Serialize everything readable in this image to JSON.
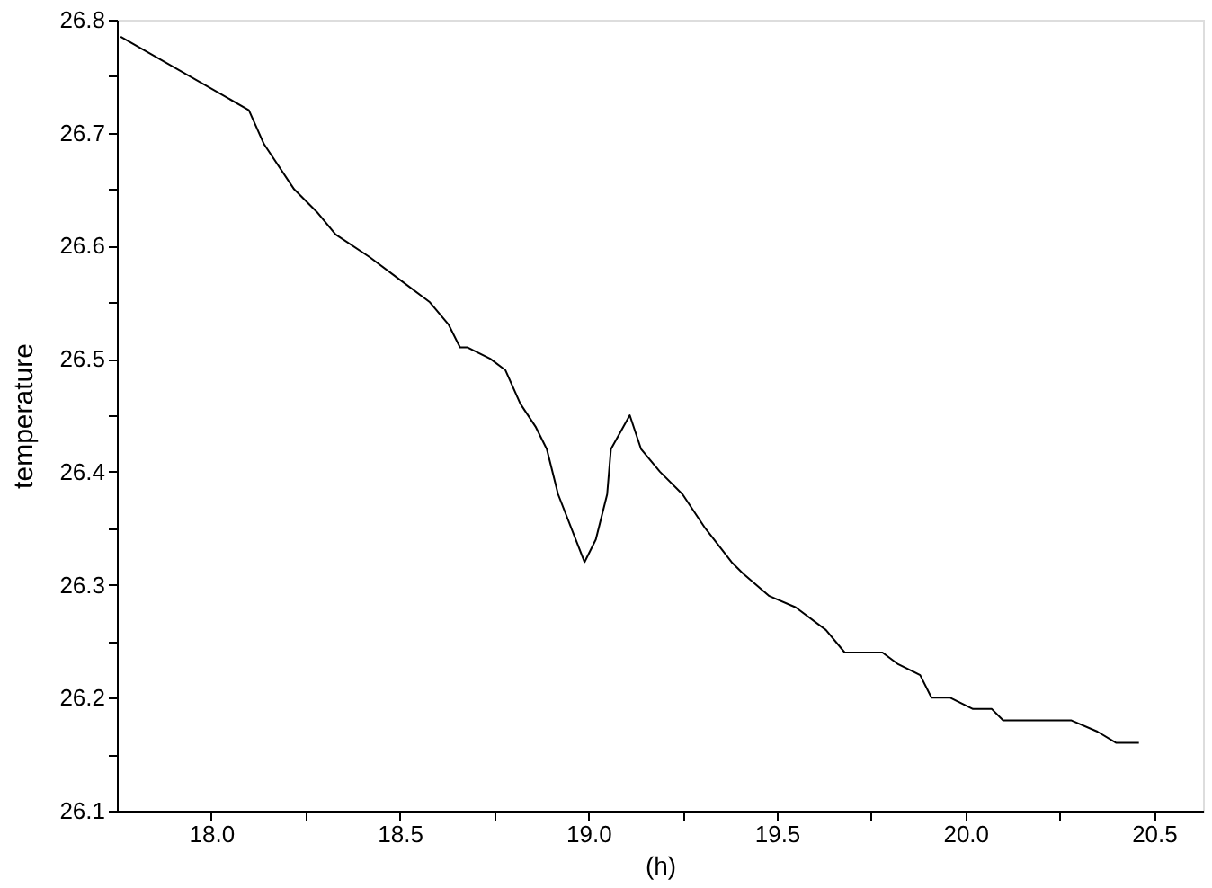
{
  "chart_data": {
    "type": "line",
    "xlabel": "(h)",
    "ylabel": "temperature",
    "x": [
      17.76,
      18.1,
      18.14,
      18.22,
      18.28,
      18.33,
      18.42,
      18.5,
      18.58,
      18.63,
      18.66,
      18.68,
      18.74,
      18.78,
      18.82,
      18.86,
      18.89,
      18.92,
      18.99,
      19.02,
      19.05,
      19.06,
      19.11,
      19.14,
      19.19,
      19.25,
      19.31,
      19.38,
      19.41,
      19.48,
      19.55,
      19.63,
      19.68,
      19.78,
      19.82,
      19.88,
      19.91,
      19.96,
      20.02,
      20.07,
      20.1,
      20.28,
      20.35,
      20.4,
      20.46
    ],
    "series": [
      {
        "color": "#000000",
        "values": [
          26.785,
          26.72,
          26.69,
          26.65,
          26.63,
          26.61,
          26.59,
          26.57,
          26.55,
          26.53,
          26.51,
          26.51,
          26.5,
          26.49,
          26.46,
          26.44,
          26.42,
          26.38,
          26.32,
          26.34,
          26.38,
          26.42,
          26.45,
          26.42,
          26.4,
          26.38,
          26.35,
          26.32,
          26.31,
          26.29,
          26.28,
          26.26,
          26.24,
          26.24,
          26.23,
          26.22,
          26.2,
          26.2,
          26.19,
          26.19,
          26.18,
          26.18,
          26.17,
          26.16,
          26.16
        ]
      }
    ],
    "xlim": [
      17.75,
      20.63
    ],
    "xticks": [
      {
        "value": 18,
        "label": "18.0"
      },
      {
        "value": 18.25,
        "label": null
      },
      {
        "value": 18.5,
        "label": "18.5"
      },
      {
        "value": 18.75,
        "label": null
      },
      {
        "value": 19,
        "label": "19.0"
      },
      {
        "value": 19.25,
        "label": null
      },
      {
        "value": 19.5,
        "label": "19.5"
      },
      {
        "value": 19.75,
        "label": null
      },
      {
        "value": 20,
        "label": "20.0"
      },
      {
        "value": 20.25,
        "label": null
      },
      {
        "value": 20.5,
        "label": "20.5"
      }
    ],
    "ylim": [
      26.1,
      26.8
    ],
    "yticks": [
      26.1,
      {
        "value": 26.15,
        "label": null
      },
      26.2,
      {
        "value": 26.25,
        "label": null
      },
      26.3,
      {
        "value": 26.35,
        "label": null
      },
      26.4,
      {
        "value": 26.45,
        "label": null
      },
      26.5,
      {
        "value": 26.55,
        "label": null
      },
      26.6,
      {
        "value": 26.65,
        "label": null
      },
      26.7,
      {
        "value": 26.75,
        "label": null
      },
      26.8
    ],
    "grid": false,
    "marker": "none",
    "line_style": "solid"
  }
}
